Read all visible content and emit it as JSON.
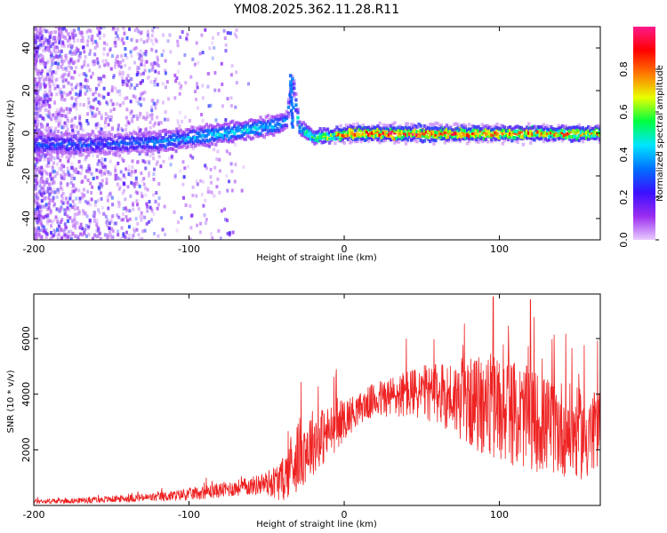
{
  "title": "YM08.2025.362.11.28.R11",
  "chart_data": [
    {
      "type": "heatmap",
      "name": "spectrogram",
      "xlabel": "Height of straight line (km)",
      "ylabel": "Frequency (Hz)",
      "xlim": [
        -200,
        165
      ],
      "ylim": [
        -50,
        50
      ],
      "xticks": [
        -200,
        -100,
        0,
        100
      ],
      "yticks": [
        -40,
        -20,
        0,
        20,
        40
      ],
      "colorbar": {
        "label": "Normalized spectral amplitude",
        "range": [
          0.0,
          1.0
        ],
        "ticks": [
          0.0,
          0.2,
          0.4,
          0.6,
          0.8
        ],
        "colormap": [
          "#e8ccff",
          "#9a2cf0",
          "#3a10ff",
          "#0070ff",
          "#00e5ff",
          "#00ff40",
          "#e8ff00",
          "#ff7a00",
          "#ff0000",
          "#ff1a8c"
        ]
      },
      "ridge": {
        "description": "dominant frequency band",
        "x": [
          -200,
          -150,
          -120,
          -100,
          -80,
          -60,
          -45,
          -38,
          -34,
          -30,
          -20,
          0,
          50,
          100,
          165
        ],
        "freq": [
          -5,
          -5,
          -4,
          -2,
          0,
          2,
          4,
          6,
          25,
          3,
          -2,
          0,
          0,
          0,
          0
        ],
        "amplitude": [
          0.3,
          0.3,
          0.35,
          0.4,
          0.45,
          0.45,
          0.4,
          0.35,
          0.25,
          0.5,
          0.6,
          0.9,
          0.95,
          0.85,
          0.8
        ]
      }
    },
    {
      "type": "line",
      "name": "snr",
      "xlabel": "Height of straight line (km)",
      "ylabel": "SNR (10 * v/v)",
      "xlim": [
        -200,
        165
      ],
      "ylim": [
        0,
        7600
      ],
      "xticks": [
        -200,
        -100,
        0,
        100
      ],
      "yticks": [
        2000,
        4000,
        6000
      ],
      "color": "#ee2222",
      "series": [
        {
          "name": "SNR",
          "envelope_x": [
            -200,
            -180,
            -160,
            -140,
            -120,
            -100,
            -80,
            -60,
            -50,
            -40,
            -30,
            -20,
            -10,
            0,
            10,
            20,
            30,
            40,
            50,
            60,
            70,
            80,
            90,
            100,
            110,
            120,
            130,
            140,
            150,
            160,
            165
          ],
          "envelope_mean": [
            150,
            160,
            200,
            250,
            300,
            400,
            550,
            700,
            800,
            900,
            1800,
            2300,
            2600,
            3100,
            3500,
            3800,
            3900,
            4000,
            4050,
            4000,
            3900,
            3700,
            3600,
            3500,
            3300,
            3100,
            2900,
            2800,
            2600,
            2500,
            2500
          ],
          "envelope_spread": [
            80,
            80,
            100,
            120,
            150,
            200,
            250,
            300,
            400,
            700,
            1200,
            1100,
            900,
            700,
            500,
            600,
            700,
            800,
            900,
            1000,
            1200,
            1400,
            1700,
            1800,
            1700,
            1700,
            1600,
            1600,
            1500,
            1500,
            1500
          ],
          "peaks": [
            {
              "x": -5,
              "y": 4900
            },
            {
              "x": 40,
              "y": 6000
            },
            {
              "x": 96,
              "y": 7500
            },
            {
              "x": 120,
              "y": 7400
            },
            {
              "x": 165,
              "y": 6400
            }
          ]
        }
      ]
    }
  ]
}
